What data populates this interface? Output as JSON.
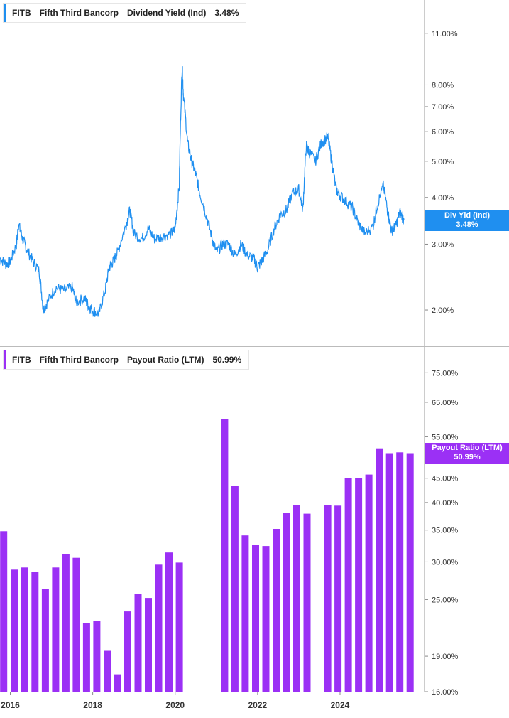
{
  "colors": {
    "yield_line": "#1f8ff0",
    "payout_bar": "#9b30f5",
    "grid": "#d8d8d8",
    "axis_text": "#333333"
  },
  "yield_panel": {
    "ticker": "FITB",
    "company": "Fifth Third Bancorp",
    "metric": "Dividend Yield (Ind)",
    "value": "3.48%",
    "badge_label": "Div Yld (Ind)",
    "badge_value": "3.48%"
  },
  "payout_panel": {
    "ticker": "FITB",
    "company": "Fifth Third Bancorp",
    "metric": "Payout Ratio (LTM)",
    "value": "50.99%",
    "badge_label": "Payout Ratio (LTM)",
    "badge_value": "50.99%"
  },
  "chart_data": [
    {
      "type": "line",
      "title": "FITB Fifth Third Bancorp Dividend Yield (Ind) 3.48%",
      "scale": "log",
      "ylim": [
        1.6,
        13.5
      ],
      "xlim": [
        2015.75,
        2026.05
      ],
      "ytick_values": [
        2,
        3,
        4,
        5,
        6,
        7,
        8,
        11
      ],
      "ytick_labels": [
        "2.00%",
        "3.00%",
        "4.00%",
        "5.00%",
        "6.00%",
        "7.00%",
        "8.00%",
        "11.00%"
      ],
      "series": [
        {
          "x": [
            2015.75,
            2015.9,
            2016.0,
            2016.15,
            2016.2,
            2016.3,
            2016.4,
            2016.55,
            2016.7,
            2016.8,
            2016.9,
            2017.1,
            2017.3,
            2017.5,
            2017.6,
            2017.8,
            2017.9,
            2018.0,
            2018.15,
            2018.3,
            2018.4,
            2018.5,
            2018.6,
            2018.8,
            2018.9,
            2019.0,
            2019.2,
            2019.35,
            2019.5,
            2019.7,
            2019.9,
            2020.0,
            2020.1,
            2020.17,
            2020.2,
            2020.3,
            2020.4,
            2020.5,
            2020.6,
            2020.75,
            2020.9,
            2021.0,
            2021.15,
            2021.3,
            2021.45,
            2021.6,
            2021.75,
            2021.9,
            2022.0,
            2022.1,
            2022.25,
            2022.4,
            2022.55,
            2022.7,
            2022.85,
            2023.0,
            2023.1,
            2023.18,
            2023.25,
            2023.4,
            2023.55,
            2023.7,
            2023.8,
            2023.9,
            2024.0,
            2024.15,
            2024.3,
            2024.45,
            2024.6,
            2024.8,
            2024.9,
            2025.05,
            2025.15,
            2025.25,
            2025.35,
            2025.45,
            2025.55
          ],
          "y": [
            2.75,
            2.65,
            2.7,
            3.0,
            3.4,
            3.1,
            2.9,
            2.7,
            2.55,
            2.0,
            2.1,
            2.3,
            2.25,
            2.3,
            2.1,
            2.15,
            2.05,
            2.0,
            1.95,
            2.25,
            2.6,
            2.7,
            2.85,
            3.35,
            3.7,
            3.2,
            3.1,
            3.3,
            3.1,
            3.15,
            3.2,
            3.3,
            4.3,
            9.0,
            7.5,
            5.6,
            5.0,
            4.6,
            4.1,
            3.6,
            3.1,
            2.85,
            3.0,
            3.0,
            2.8,
            3.0,
            2.8,
            2.75,
            2.6,
            2.7,
            2.9,
            3.3,
            3.6,
            3.7,
            4.1,
            4.2,
            3.7,
            5.5,
            5.3,
            5.0,
            5.6,
            5.8,
            5.0,
            4.2,
            4.05,
            3.9,
            3.75,
            3.4,
            3.2,
            3.35,
            3.8,
            4.3,
            3.7,
            3.25,
            3.35,
            3.65,
            3.48
          ]
        }
      ]
    },
    {
      "type": "bar",
      "title": "FITB Fifth Third Bancorp Payout Ratio (LTM) 50.99%",
      "scale": "log",
      "ylim": [
        16,
        85
      ],
      "xlim": [
        2015.75,
        2026.05
      ],
      "ytick_values": [
        16,
        19,
        25,
        30,
        35,
        40,
        45,
        55,
        65,
        75
      ],
      "ytick_labels": [
        "16.00%",
        "19.00%",
        "25.00%",
        "30.00%",
        "35.00%",
        "40.00%",
        "45.00%",
        "55.00%",
        "65.00%",
        "75.00%"
      ],
      "x": [
        2015.84,
        2016.1,
        2016.35,
        2016.6,
        2016.85,
        2017.1,
        2017.35,
        2017.6,
        2017.85,
        2018.1,
        2018.35,
        2018.6,
        2018.85,
        2019.1,
        2019.35,
        2019.6,
        2019.85,
        2020.1,
        2021.2,
        2021.45,
        2021.7,
        2021.95,
        2022.2,
        2022.45,
        2022.7,
        2022.95,
        2023.2,
        2023.7,
        2023.95,
        2024.2,
        2024.45,
        2024.7,
        2024.95,
        2025.2,
        2025.45,
        2025.7
      ],
      "series": [
        {
          "name": "Payout Ratio (LTM)",
          "values": [
            34.8,
            28.9,
            29.2,
            28.6,
            26.3,
            29.2,
            31.2,
            30.6,
            22.3,
            22.5,
            19.5,
            17.4,
            23.6,
            25.7,
            25.2,
            29.6,
            31.4,
            29.9,
            60.0,
            43.3,
            34.1,
            32.6,
            32.4,
            35.2,
            38.1,
            39.5,
            37.9,
            39.5,
            39.4,
            45.0,
            45.0,
            45.8,
            52.0,
            50.8,
            51.0,
            50.8
          ]
        }
      ],
      "xtick_labels": [
        "2016",
        "2018",
        "2020",
        "2022",
        "2024"
      ],
      "xtick_values": [
        2016.0,
        2018.0,
        2020.0,
        2022.0,
        2024.0
      ]
    }
  ]
}
